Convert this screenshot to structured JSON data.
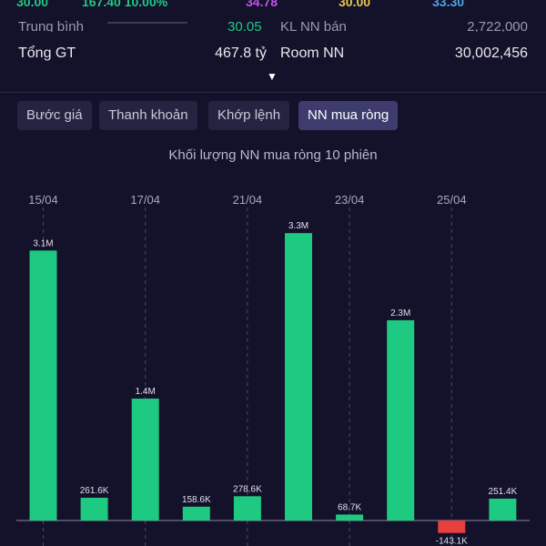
{
  "header": {
    "top_row_partial": [
      "30.00",
      "167.40 10.00%",
      "34.78",
      "30.00",
      "33.30"
    ],
    "second_row_partial": {
      "left_label": "Trung bình",
      "left_value": "30.05",
      "right_label": "KL NN bán",
      "right_value": "2,722,000"
    },
    "total_value": {
      "label": "Tổng GT",
      "value": "467.8 tỷ"
    },
    "foreign_room": {
      "label": "Room NN",
      "value": "30,002,456"
    },
    "expand_icon": "caret-down-icon"
  },
  "tabs": [
    {
      "label": "Bước giá",
      "active": false
    },
    {
      "label": "Thanh khoản",
      "active": false
    },
    {
      "label": "Khớp lệnh",
      "active": false
    },
    {
      "label": "NN mua ròng",
      "active": true
    }
  ],
  "chart_title": "Khối lượng NN mua ròng 10 phiên",
  "colors": {
    "background": "#14112a",
    "positive": "#1ec981",
    "negative": "#e8403e",
    "active_tab": "#3e3b6e",
    "tab": "#252340"
  },
  "chart_data": {
    "type": "bar",
    "title": "Khối lượng NN mua ròng 10 phiên",
    "date_ticks": [
      "15/04",
      "17/04",
      "21/04",
      "23/04",
      "25/04"
    ],
    "values": [
      3100000,
      261600,
      1400000,
      158600,
      278600,
      3300000,
      68700,
      2300000,
      -143100,
      251400
    ],
    "value_labels": [
      "3.1M",
      "261.6K",
      "1.4M",
      "158.6K",
      "278.6K",
      "3.3M",
      "68.7K",
      "2.3M",
      "-143.1K",
      "251.4K"
    ],
    "grid": false
  }
}
